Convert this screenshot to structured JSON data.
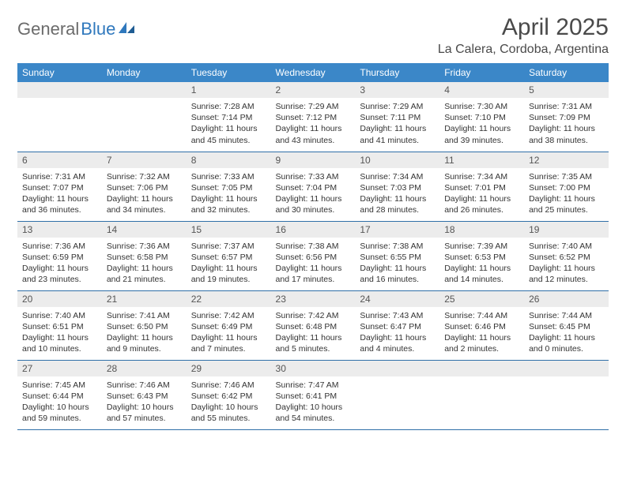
{
  "logo": {
    "part1": "General",
    "part2": "Blue"
  },
  "title": "April 2025",
  "location": "La Calera, Cordoba, Argentina",
  "colors": {
    "header_bg": "#3b87c8",
    "header_text": "#ffffff",
    "daynum_bg": "#ececec",
    "border": "#2f6fa8",
    "logo_gray": "#6b6b6b",
    "logo_blue": "#2f78bd"
  },
  "day_names": [
    "Sunday",
    "Monday",
    "Tuesday",
    "Wednesday",
    "Thursday",
    "Friday",
    "Saturday"
  ],
  "weeks": [
    [
      {
        "n": "",
        "sr": "",
        "ss": "",
        "dl": ""
      },
      {
        "n": "",
        "sr": "",
        "ss": "",
        "dl": ""
      },
      {
        "n": "1",
        "sr": "Sunrise: 7:28 AM",
        "ss": "Sunset: 7:14 PM",
        "dl": "Daylight: 11 hours and 45 minutes."
      },
      {
        "n": "2",
        "sr": "Sunrise: 7:29 AM",
        "ss": "Sunset: 7:12 PM",
        "dl": "Daylight: 11 hours and 43 minutes."
      },
      {
        "n": "3",
        "sr": "Sunrise: 7:29 AM",
        "ss": "Sunset: 7:11 PM",
        "dl": "Daylight: 11 hours and 41 minutes."
      },
      {
        "n": "4",
        "sr": "Sunrise: 7:30 AM",
        "ss": "Sunset: 7:10 PM",
        "dl": "Daylight: 11 hours and 39 minutes."
      },
      {
        "n": "5",
        "sr": "Sunrise: 7:31 AM",
        "ss": "Sunset: 7:09 PM",
        "dl": "Daylight: 11 hours and 38 minutes."
      }
    ],
    [
      {
        "n": "6",
        "sr": "Sunrise: 7:31 AM",
        "ss": "Sunset: 7:07 PM",
        "dl": "Daylight: 11 hours and 36 minutes."
      },
      {
        "n": "7",
        "sr": "Sunrise: 7:32 AM",
        "ss": "Sunset: 7:06 PM",
        "dl": "Daylight: 11 hours and 34 minutes."
      },
      {
        "n": "8",
        "sr": "Sunrise: 7:33 AM",
        "ss": "Sunset: 7:05 PM",
        "dl": "Daylight: 11 hours and 32 minutes."
      },
      {
        "n": "9",
        "sr": "Sunrise: 7:33 AM",
        "ss": "Sunset: 7:04 PM",
        "dl": "Daylight: 11 hours and 30 minutes."
      },
      {
        "n": "10",
        "sr": "Sunrise: 7:34 AM",
        "ss": "Sunset: 7:03 PM",
        "dl": "Daylight: 11 hours and 28 minutes."
      },
      {
        "n": "11",
        "sr": "Sunrise: 7:34 AM",
        "ss": "Sunset: 7:01 PM",
        "dl": "Daylight: 11 hours and 26 minutes."
      },
      {
        "n": "12",
        "sr": "Sunrise: 7:35 AM",
        "ss": "Sunset: 7:00 PM",
        "dl": "Daylight: 11 hours and 25 minutes."
      }
    ],
    [
      {
        "n": "13",
        "sr": "Sunrise: 7:36 AM",
        "ss": "Sunset: 6:59 PM",
        "dl": "Daylight: 11 hours and 23 minutes."
      },
      {
        "n": "14",
        "sr": "Sunrise: 7:36 AM",
        "ss": "Sunset: 6:58 PM",
        "dl": "Daylight: 11 hours and 21 minutes."
      },
      {
        "n": "15",
        "sr": "Sunrise: 7:37 AM",
        "ss": "Sunset: 6:57 PM",
        "dl": "Daylight: 11 hours and 19 minutes."
      },
      {
        "n": "16",
        "sr": "Sunrise: 7:38 AM",
        "ss": "Sunset: 6:56 PM",
        "dl": "Daylight: 11 hours and 17 minutes."
      },
      {
        "n": "17",
        "sr": "Sunrise: 7:38 AM",
        "ss": "Sunset: 6:55 PM",
        "dl": "Daylight: 11 hours and 16 minutes."
      },
      {
        "n": "18",
        "sr": "Sunrise: 7:39 AM",
        "ss": "Sunset: 6:53 PM",
        "dl": "Daylight: 11 hours and 14 minutes."
      },
      {
        "n": "19",
        "sr": "Sunrise: 7:40 AM",
        "ss": "Sunset: 6:52 PM",
        "dl": "Daylight: 11 hours and 12 minutes."
      }
    ],
    [
      {
        "n": "20",
        "sr": "Sunrise: 7:40 AM",
        "ss": "Sunset: 6:51 PM",
        "dl": "Daylight: 11 hours and 10 minutes."
      },
      {
        "n": "21",
        "sr": "Sunrise: 7:41 AM",
        "ss": "Sunset: 6:50 PM",
        "dl": "Daylight: 11 hours and 9 minutes."
      },
      {
        "n": "22",
        "sr": "Sunrise: 7:42 AM",
        "ss": "Sunset: 6:49 PM",
        "dl": "Daylight: 11 hours and 7 minutes."
      },
      {
        "n": "23",
        "sr": "Sunrise: 7:42 AM",
        "ss": "Sunset: 6:48 PM",
        "dl": "Daylight: 11 hours and 5 minutes."
      },
      {
        "n": "24",
        "sr": "Sunrise: 7:43 AM",
        "ss": "Sunset: 6:47 PM",
        "dl": "Daylight: 11 hours and 4 minutes."
      },
      {
        "n": "25",
        "sr": "Sunrise: 7:44 AM",
        "ss": "Sunset: 6:46 PM",
        "dl": "Daylight: 11 hours and 2 minutes."
      },
      {
        "n": "26",
        "sr": "Sunrise: 7:44 AM",
        "ss": "Sunset: 6:45 PM",
        "dl": "Daylight: 11 hours and 0 minutes."
      }
    ],
    [
      {
        "n": "27",
        "sr": "Sunrise: 7:45 AM",
        "ss": "Sunset: 6:44 PM",
        "dl": "Daylight: 10 hours and 59 minutes."
      },
      {
        "n": "28",
        "sr": "Sunrise: 7:46 AM",
        "ss": "Sunset: 6:43 PM",
        "dl": "Daylight: 10 hours and 57 minutes."
      },
      {
        "n": "29",
        "sr": "Sunrise: 7:46 AM",
        "ss": "Sunset: 6:42 PM",
        "dl": "Daylight: 10 hours and 55 minutes."
      },
      {
        "n": "30",
        "sr": "Sunrise: 7:47 AM",
        "ss": "Sunset: 6:41 PM",
        "dl": "Daylight: 10 hours and 54 minutes."
      },
      {
        "n": "",
        "sr": "",
        "ss": "",
        "dl": ""
      },
      {
        "n": "",
        "sr": "",
        "ss": "",
        "dl": ""
      },
      {
        "n": "",
        "sr": "",
        "ss": "",
        "dl": ""
      }
    ]
  ]
}
